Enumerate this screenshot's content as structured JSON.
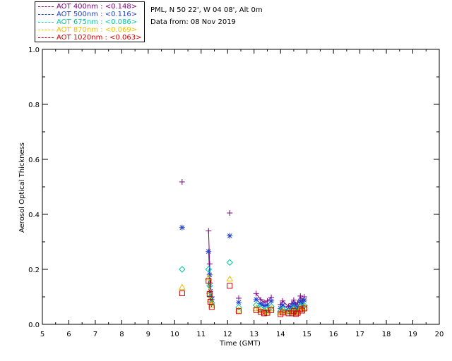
{
  "legend": [
    {
      "text": "AOT  400nm : <0.148>",
      "color": "#800080"
    },
    {
      "text": "AOT  500nm : <0.116>",
      "color": "#1f3fd0"
    },
    {
      "text": "AOT  675nm : <0.086>",
      "color": "#00c8a0"
    },
    {
      "text": "AOT  870nm : <0.069>",
      "color": "#f0c000"
    },
    {
      "text": "AOT 1020nm : <0.063>",
      "color": "#cc0000"
    }
  ],
  "info": {
    "site": "PML, N 50 22', W 04 08', Alt 0m",
    "date": "Data from: 08 Nov 2019"
  },
  "chart_data": {
    "type": "line",
    "xlabel": "Time (GMT)",
    "ylabel": "Aerosol Optical Thickness",
    "xlim": [
      5,
      20
    ],
    "ylim": [
      0.0,
      1.0
    ],
    "xticks": [
      "5",
      "6",
      "7",
      "8",
      "9",
      "10",
      "11",
      "12",
      "13",
      "14",
      "15",
      "16",
      "17",
      "18",
      "19",
      "20"
    ],
    "yticks": [
      "0.0",
      "0.2",
      "0.4",
      "0.6",
      "0.8",
      "1.0"
    ],
    "grid": false,
    "legend_position": "top-left (outside plot)",
    "series": [
      {
        "name": "AOT  400nm : <0.148>",
        "color": "#800080",
        "marker": "plus",
        "x": [
          10.28,
          11.28,
          11.32,
          11.35,
          11.4,
          12.08,
          12.42,
          13.08,
          13.25,
          13.38,
          13.5,
          13.65,
          14.0,
          14.08,
          14.3,
          14.42,
          14.5,
          14.58,
          14.65,
          14.75,
          14.82,
          14.9
        ],
        "y": [
          0.518,
          0.34,
          0.22,
          0.15,
          0.1,
          0.405,
          0.095,
          0.112,
          0.09,
          0.08,
          0.085,
          0.098,
          0.072,
          0.085,
          0.065,
          0.075,
          0.088,
          0.07,
          0.078,
          0.103,
          0.085,
          0.1
        ]
      },
      {
        "name": "AOT  500nm : <0.116>",
        "color": "#1f3fd0",
        "marker": "star",
        "x": [
          10.28,
          11.28,
          11.32,
          11.35,
          11.4,
          12.08,
          12.42,
          13.08,
          13.25,
          13.38,
          13.5,
          13.65,
          14.0,
          14.08,
          14.3,
          14.42,
          14.5,
          14.58,
          14.65,
          14.75,
          14.82,
          14.9
        ],
        "y": [
          0.352,
          0.265,
          0.18,
          0.12,
          0.09,
          0.322,
          0.08,
          0.09,
          0.075,
          0.068,
          0.07,
          0.085,
          0.058,
          0.07,
          0.055,
          0.063,
          0.075,
          0.058,
          0.065,
          0.085,
          0.072,
          0.088
        ]
      },
      {
        "name": "AOT  675nm : <0.086>",
        "color": "#00c8a0",
        "marker": "diamond",
        "x": [
          10.28,
          11.28,
          11.32,
          11.35,
          11.4,
          12.08,
          12.42,
          13.08,
          13.25,
          13.38,
          13.5,
          13.65,
          14.0,
          14.08,
          14.3,
          14.42,
          14.5,
          14.58,
          14.65,
          14.75,
          14.82,
          14.9
        ],
        "y": [
          0.2,
          0.2,
          0.14,
          0.1,
          0.078,
          0.225,
          0.062,
          0.07,
          0.058,
          0.05,
          0.055,
          0.065,
          0.048,
          0.055,
          0.048,
          0.05,
          0.06,
          0.048,
          0.052,
          0.068,
          0.06,
          0.068
        ]
      },
      {
        "name": "AOT  870nm : <0.069>",
        "color": "#f0c000",
        "marker": "triangle",
        "x": [
          10.28,
          11.28,
          11.32,
          11.35,
          11.4,
          12.08,
          12.42,
          13.08,
          13.25,
          13.38,
          13.5,
          13.65,
          14.0,
          14.08,
          14.3,
          14.42,
          14.5,
          14.58,
          14.65,
          14.75,
          14.82,
          14.9
        ],
        "y": [
          0.135,
          0.17,
          0.12,
          0.09,
          0.07,
          0.165,
          0.052,
          0.058,
          0.05,
          0.045,
          0.048,
          0.058,
          0.042,
          0.048,
          0.045,
          0.045,
          0.052,
          0.043,
          0.046,
          0.06,
          0.055,
          0.062
        ]
      },
      {
        "name": "AOT 1020nm : <0.063>",
        "color": "#cc0000",
        "marker": "square",
        "x": [
          10.28,
          11.28,
          11.32,
          11.35,
          11.4,
          12.08,
          12.42,
          13.08,
          13.25,
          13.38,
          13.5,
          13.65,
          14.0,
          14.08,
          14.3,
          14.42,
          14.5,
          14.58,
          14.65,
          14.75,
          14.82,
          14.9
        ],
        "y": [
          0.113,
          0.158,
          0.11,
          0.082,
          0.063,
          0.14,
          0.048,
          0.052,
          0.045,
          0.04,
          0.042,
          0.052,
          0.037,
          0.043,
          0.04,
          0.04,
          0.048,
          0.038,
          0.042,
          0.055,
          0.05,
          0.058
        ]
      }
    ]
  }
}
